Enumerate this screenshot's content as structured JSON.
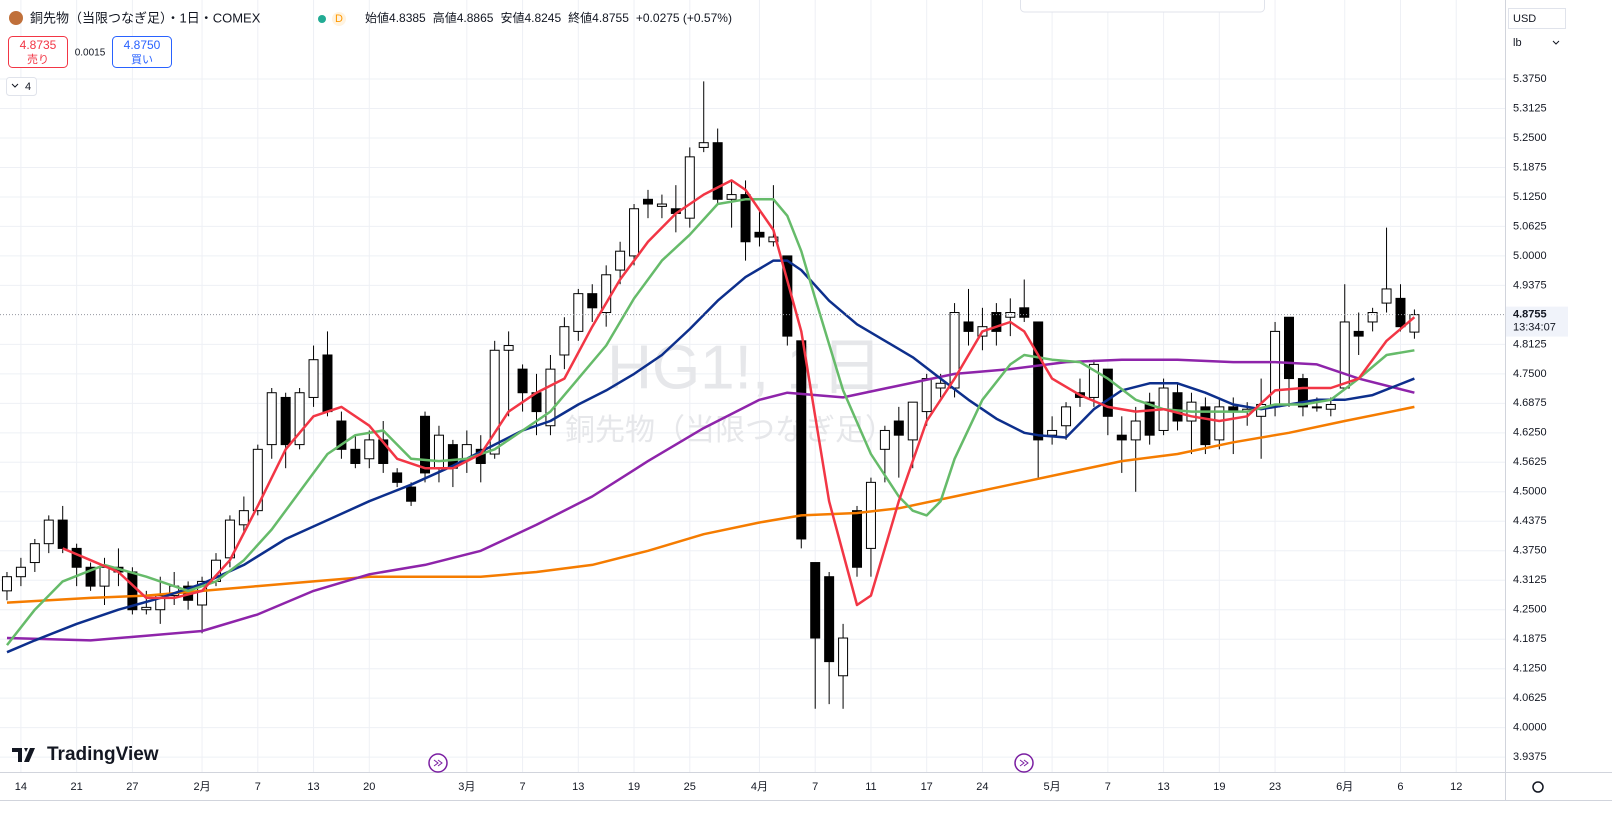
{
  "header": {
    "title": "銅先物（当限つなぎ足）・1日・COMEX",
    "status": "D",
    "ohlc_legend": [
      {
        "label": "始値",
        "value": "4.8385"
      },
      {
        "label": "高値",
        "value": "4.8865"
      },
      {
        "label": "安値",
        "value": "4.8245"
      },
      {
        "label": "終値",
        "value": "4.8755"
      }
    ],
    "change": "+0.0275 (+0.57%)",
    "bid": {
      "price": "4.8735",
      "label": "売り"
    },
    "spread": "0.0015",
    "ask": {
      "price": "4.8750",
      "label": "買い"
    },
    "indicators_count": "4"
  },
  "price_scale": {
    "currency": "USD",
    "unit": "lb",
    "countdown": "13:34:07"
  },
  "watermark": {
    "symbol": "HG1!, 1日",
    "description": "銅先物（当限つなぎ足）"
  },
  "brand": "TradingView",
  "chart_data": {
    "type": "candlestick",
    "up_color": "#ffffff",
    "down_color": "#000000",
    "grid": true,
    "last_price": 4.8755,
    "open": [
      4.29,
      4.32,
      4.35,
      4.39,
      4.44,
      4.38,
      4.34,
      4.3,
      4.34,
      4.33,
      4.25,
      4.25,
      4.28,
      4.3,
      4.26,
      4.31,
      4.36,
      4.43,
      4.46,
      4.6,
      4.7,
      4.6,
      4.7,
      4.79,
      4.65,
      4.59,
      4.57,
      4.61,
      4.54,
      4.51,
      4.66,
      4.55,
      4.6,
      4.57,
      4.59,
      4.58,
      4.8,
      4.76,
      4.71,
      4.64,
      4.79,
      4.84,
      4.92,
      4.88,
      4.97,
      5.0,
      5.12,
      5.105,
      5.1,
      5.08,
      5.23,
      5.24,
      5.12,
      5.13,
      5.05,
      5.03,
      5.0,
      4.82,
      4.35,
      4.32,
      4.11,
      4.46,
      4.38,
      4.59,
      4.65,
      4.61,
      4.67,
      4.72,
      4.72,
      4.86,
      4.83,
      4.88,
      4.87,
      4.89,
      4.86,
      4.62,
      4.64,
      4.71,
      4.7,
      4.76,
      4.62,
      4.61,
      4.69,
      4.63,
      4.71,
      4.65,
      4.68,
      4.61,
      4.68,
      4.67,
      4.66,
      4.68,
      4.87,
      4.74,
      4.68,
      4.675,
      4.72,
      4.84,
      4.86,
      4.9,
      4.91,
      4.8385
    ],
    "high": [
      4.33,
      4.36,
      4.4,
      4.45,
      4.47,
      4.39,
      4.35,
      4.36,
      4.38,
      4.34,
      4.29,
      4.32,
      4.33,
      4.31,
      4.32,
      4.37,
      4.45,
      4.49,
      4.6,
      4.72,
      4.71,
      4.72,
      4.81,
      4.84,
      4.67,
      4.62,
      4.63,
      4.65,
      4.55,
      4.52,
      4.67,
      4.64,
      4.61,
      4.63,
      4.62,
      4.82,
      4.84,
      4.77,
      4.75,
      4.79,
      4.87,
      4.93,
      4.94,
      4.98,
      5.03,
      5.11,
      5.14,
      5.13,
      5.15,
      5.23,
      5.37,
      5.27,
      5.16,
      5.16,
      5.1,
      5.15,
      5.0,
      4.82,
      4.35,
      4.33,
      4.22,
      4.47,
      4.53,
      4.64,
      4.68,
      4.69,
      4.75,
      4.75,
      4.9,
      4.93,
      4.89,
      4.9,
      4.91,
      4.95,
      4.86,
      4.66,
      4.69,
      4.74,
      4.78,
      4.76,
      4.66,
      4.68,
      4.71,
      4.74,
      4.73,
      4.71,
      4.7,
      4.7,
      4.7,
      4.69,
      4.74,
      4.86,
      4.87,
      4.75,
      4.7,
      4.7,
      4.94,
      4.88,
      4.89,
      5.06,
      4.94,
      4.8865
    ],
    "low": [
      4.27,
      4.3,
      4.33,
      4.37,
      4.37,
      4.3,
      4.29,
      4.26,
      4.3,
      4.24,
      4.24,
      4.22,
      4.26,
      4.25,
      4.2,
      4.3,
      4.34,
      4.41,
      4.45,
      4.57,
      4.55,
      4.59,
      4.68,
      4.66,
      4.57,
      4.55,
      4.55,
      4.54,
      4.51,
      4.47,
      4.52,
      4.52,
      4.51,
      4.54,
      4.52,
      4.57,
      4.66,
      4.67,
      4.62,
      4.62,
      4.76,
      4.82,
      4.86,
      4.85,
      4.94,
      4.98,
      5.08,
      5.08,
      5.05,
      5.06,
      5.22,
      5.11,
      5.06,
      4.99,
      5.02,
      5.02,
      4.81,
      4.38,
      4.04,
      4.05,
      4.04,
      4.32,
      4.32,
      4.52,
      4.53,
      4.55,
      4.64,
      4.7,
      4.7,
      4.81,
      4.8,
      4.81,
      4.83,
      4.86,
      4.53,
      4.6,
      4.61,
      4.68,
      4.68,
      4.62,
      4.54,
      4.5,
      4.6,
      4.62,
      4.63,
      4.58,
      4.58,
      4.59,
      4.58,
      4.64,
      4.57,
      4.66,
      4.68,
      4.66,
      4.67,
      4.66,
      4.72,
      4.79,
      4.84,
      4.88,
      4.84,
      4.8245
    ],
    "close": [
      4.32,
      4.34,
      4.39,
      4.44,
      4.38,
      4.34,
      4.3,
      4.34,
      4.33,
      4.25,
      4.255,
      4.28,
      4.3,
      4.27,
      4.31,
      4.355,
      4.44,
      4.46,
      4.59,
      4.71,
      4.6,
      4.71,
      4.78,
      4.67,
      4.59,
      4.56,
      4.61,
      4.56,
      4.52,
      4.48,
      4.54,
      4.62,
      4.55,
      4.6,
      4.56,
      4.8,
      4.81,
      4.71,
      4.67,
      4.76,
      4.85,
      4.92,
      4.89,
      4.96,
      5.01,
      5.1,
      5.11,
      5.11,
      5.09,
      5.21,
      5.24,
      5.12,
      5.13,
      5.03,
      5.04,
      5.04,
      4.83,
      4.4,
      4.19,
      4.14,
      4.19,
      4.34,
      4.52,
      4.63,
      4.62,
      4.69,
      4.74,
      4.73,
      4.88,
      4.84,
      4.85,
      4.84,
      4.88,
      4.87,
      4.61,
      4.63,
      4.68,
      4.7,
      4.77,
      4.66,
      4.61,
      4.65,
      4.62,
      4.72,
      4.65,
      4.69,
      4.6,
      4.68,
      4.67,
      4.675,
      4.685,
      4.84,
      4.74,
      4.68,
      4.68,
      4.685,
      4.86,
      4.83,
      4.88,
      4.93,
      4.85,
      4.8755
    ],
    "lines": [
      {
        "color": "#f57c00",
        "x": [
          0,
          6,
          10,
          14,
          18,
          22,
          26,
          30,
          34,
          38,
          42,
          46,
          50,
          54,
          57,
          61,
          64,
          68,
          72,
          76,
          80,
          84,
          88,
          92,
          96,
          101
        ],
        "values": [
          4.265,
          4.275,
          4.28,
          4.29,
          4.3,
          4.31,
          4.32,
          4.32,
          4.32,
          4.33,
          4.345,
          4.375,
          4.41,
          4.435,
          4.45,
          4.455,
          4.465,
          4.49,
          4.515,
          4.54,
          4.565,
          4.58,
          4.605,
          4.625,
          4.65,
          4.68
        ]
      },
      {
        "color": "#8e24aa",
        "x": [
          0,
          6,
          10,
          14,
          18,
          22,
          26,
          30,
          34,
          38,
          42,
          46,
          50,
          54,
          56,
          60,
          64,
          68,
          72,
          76,
          80,
          84,
          88,
          91,
          94,
          97,
          101
        ],
        "values": [
          4.19,
          4.185,
          4.195,
          4.205,
          4.24,
          4.29,
          4.325,
          4.345,
          4.375,
          4.43,
          4.49,
          4.565,
          4.635,
          4.695,
          4.71,
          4.7,
          4.725,
          4.75,
          4.76,
          4.775,
          4.78,
          4.78,
          4.775,
          4.775,
          4.77,
          4.74,
          4.71
        ]
      },
      {
        "color": "#0d2f8c",
        "x": [
          0,
          2,
          5,
          8,
          11,
          14,
          17,
          20,
          23,
          26,
          29,
          32,
          35,
          37,
          39,
          41,
          43,
          45,
          47,
          49,
          51,
          53,
          55,
          56,
          57,
          59,
          61,
          63,
          65,
          67,
          69,
          71,
          73,
          74,
          76,
          78,
          80,
          82,
          84,
          86,
          88,
          90,
          92,
          94,
          96,
          98,
          101
        ],
        "values": [
          4.16,
          4.185,
          4.22,
          4.25,
          4.275,
          4.305,
          4.345,
          4.4,
          4.44,
          4.48,
          4.515,
          4.555,
          4.6,
          4.63,
          4.65,
          4.685,
          4.715,
          4.75,
          4.79,
          4.845,
          4.905,
          4.955,
          4.99,
          4.99,
          4.97,
          4.905,
          4.855,
          4.82,
          4.785,
          4.74,
          4.695,
          4.655,
          4.625,
          4.62,
          4.615,
          4.675,
          4.715,
          4.73,
          4.73,
          4.71,
          4.685,
          4.675,
          4.685,
          4.695,
          4.695,
          4.705,
          4.74
        ]
      },
      {
        "color": "#66bb6a",
        "x": [
          0,
          2,
          4,
          7,
          10,
          13,
          15,
          17,
          19,
          21,
          23,
          25,
          27,
          29,
          31,
          33,
          35,
          37,
          39,
          41,
          43,
          45,
          47,
          49,
          51,
          53,
          55,
          56,
          57,
          58,
          60,
          62,
          64,
          65,
          66,
          67,
          68,
          70,
          72,
          73,
          75,
          77,
          79,
          81,
          83,
          85,
          87,
          89,
          91,
          93,
          95,
          97,
          99,
          101
        ],
        "values": [
          4.175,
          4.25,
          4.31,
          4.345,
          4.32,
          4.29,
          4.31,
          4.355,
          4.42,
          4.5,
          4.58,
          4.62,
          4.63,
          4.57,
          4.565,
          4.57,
          4.59,
          4.63,
          4.67,
          4.74,
          4.81,
          4.91,
          4.99,
          5.045,
          5.11,
          5.12,
          5.12,
          5.085,
          5.01,
          4.91,
          4.715,
          4.58,
          4.49,
          4.46,
          4.45,
          4.48,
          4.57,
          4.695,
          4.77,
          4.79,
          4.78,
          4.775,
          4.74,
          4.695,
          4.675,
          4.67,
          4.67,
          4.67,
          4.685,
          4.685,
          4.695,
          4.74,
          4.79,
          4.8
        ]
      },
      {
        "color": "#f23645",
        "x": [
          4,
          6,
          8,
          10,
          12,
          14,
          16,
          18,
          20,
          22,
          24,
          26,
          28,
          30,
          32,
          34,
          36,
          38,
          40,
          42,
          44,
          46,
          48,
          50,
          52,
          53,
          55,
          57,
          59,
          61,
          62,
          64,
          66,
          68,
          70,
          72,
          73,
          75,
          77,
          79,
          81,
          83,
          85,
          87,
          89,
          91,
          93,
          95,
          97,
          99,
          101
        ],
        "values": [
          4.38,
          4.355,
          4.33,
          4.275,
          4.275,
          4.29,
          4.355,
          4.47,
          4.59,
          4.66,
          4.68,
          4.64,
          4.57,
          4.55,
          4.55,
          4.58,
          4.67,
          4.71,
          4.74,
          4.85,
          4.95,
          5.03,
          5.09,
          5.13,
          5.16,
          5.14,
          5.055,
          4.84,
          4.48,
          4.26,
          4.28,
          4.48,
          4.65,
          4.74,
          4.84,
          4.86,
          4.84,
          4.74,
          4.705,
          4.68,
          4.67,
          4.675,
          4.66,
          4.65,
          4.66,
          4.715,
          4.72,
          4.72,
          4.74,
          4.82,
          4.87
        ]
      }
    ],
    "xlim": [
      -0.5,
      107.5
    ],
    "xticks": [
      {
        "value": 1,
        "label": "14"
      },
      {
        "value": 5,
        "label": "21"
      },
      {
        "value": 9,
        "label": "27"
      },
      {
        "value": 14,
        "label": "2月"
      },
      {
        "value": 18,
        "label": "7"
      },
      {
        "value": 22,
        "label": "13"
      },
      {
        "value": 26,
        "label": "20"
      },
      {
        "value": 33,
        "label": "3月"
      },
      {
        "value": 37,
        "label": "7"
      },
      {
        "value": 41,
        "label": "13"
      },
      {
        "value": 45,
        "label": "19"
      },
      {
        "value": 49,
        "label": "25"
      },
      {
        "value": 54,
        "label": "4月"
      },
      {
        "value": 58,
        "label": "7"
      },
      {
        "value": 62,
        "label": "11"
      },
      {
        "value": 66,
        "label": "17"
      },
      {
        "value": 70,
        "label": "24"
      },
      {
        "value": 75,
        "label": "5月"
      },
      {
        "value": 79,
        "label": "7"
      },
      {
        "value": 83,
        "label": "13"
      },
      {
        "value": 87,
        "label": "19"
      },
      {
        "value": 91,
        "label": "23"
      },
      {
        "value": 96,
        "label": "6月"
      },
      {
        "value": 100,
        "label": "6"
      },
      {
        "value": 104,
        "label": "12"
      }
    ],
    "ylim": [
      3.906,
      5.5425
    ],
    "yticks": [
      3.9375,
      {
        "value": 4,
        "label": "4.0000"
      },
      4.0625,
      {
        "value": 4.125,
        "label": "4.1250"
      },
      4.1875,
      {
        "value": 4.25,
        "label": "4.2500"
      },
      4.3125,
      {
        "value": 4.375,
        "label": "4.3750"
      },
      4.4375,
      {
        "value": 4.5,
        "label": "4.5000"
      },
      4.5625,
      {
        "value": 4.625,
        "label": "4.6250"
      },
      4.6875,
      {
        "value": 4.75,
        "label": "4.7500"
      },
      4.8125,
      4.9375,
      {
        "value": 5,
        "label": "5.0000"
      },
      5.0625,
      {
        "value": 5.125,
        "label": "5.1250"
      },
      5.1875,
      {
        "value": 5.25,
        "label": "5.2500"
      },
      5.3125,
      {
        "value": 5.375,
        "label": "5.3750"
      }
    ]
  }
}
